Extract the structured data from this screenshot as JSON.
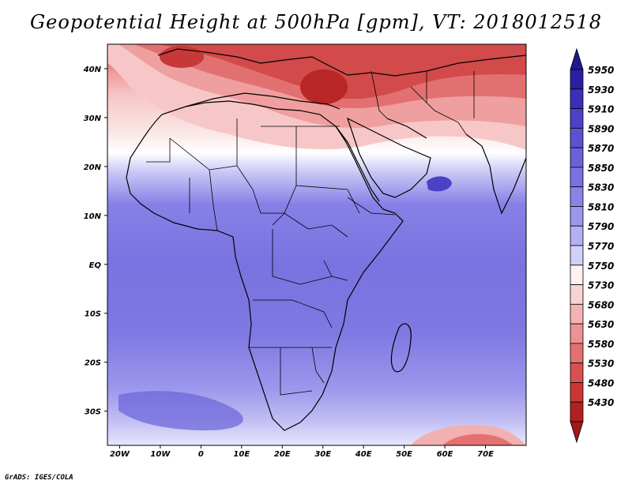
{
  "title": "Geopotential Height at 500hPa [gpm], VT: 2018012518",
  "footer": "GrADS: IGES/COLA",
  "map": {
    "lon_range": [
      -23,
      80
    ],
    "lat_range": [
      -37,
      45
    ],
    "lon_ticks": [
      {
        "v": -20,
        "label": "20W"
      },
      {
        "v": -10,
        "label": "10W"
      },
      {
        "v": 0,
        "label": "0"
      },
      {
        "v": 10,
        "label": "10E"
      },
      {
        "v": 20,
        "label": "20E"
      },
      {
        "v": 30,
        "label": "30E"
      },
      {
        "v": 40,
        "label": "40E"
      },
      {
        "v": 50,
        "label": "50E"
      },
      {
        "v": 60,
        "label": "60E"
      },
      {
        "v": 70,
        "label": "70E"
      }
    ],
    "lat_ticks": [
      {
        "v": 40,
        "label": "40N"
      },
      {
        "v": 30,
        "label": "30N"
      },
      {
        "v": 20,
        "label": "20N"
      },
      {
        "v": 10,
        "label": "10N"
      },
      {
        "v": 0,
        "label": "EQ"
      },
      {
        "v": -10,
        "label": "10S"
      },
      {
        "v": -20,
        "label": "20S"
      },
      {
        "v": -30,
        "label": "30S"
      }
    ]
  },
  "colorbar": {
    "levels": [
      "5950",
      "5930",
      "5910",
      "5890",
      "5870",
      "5850",
      "5830",
      "5810",
      "5790",
      "5770",
      "5750",
      "5730",
      "5680",
      "5630",
      "5580",
      "5530",
      "5480",
      "5430"
    ],
    "colors": [
      "#2a1fa0",
      "#3a30b8",
      "#4b42c8",
      "#5a52d2",
      "#6a62da",
      "#7a72e0",
      "#8b84e6",
      "#9d97ec",
      "#b3aff2",
      "#d2d0f8",
      "#fdf1f1",
      "#f9d3d3",
      "#f3b3b3",
      "#ec9292",
      "#e47070",
      "#d95050",
      "#cc3535",
      "#b32020"
    ],
    "top_arrow_color": "#1f1890",
    "bottom_arrow_color": "#a01818"
  }
}
